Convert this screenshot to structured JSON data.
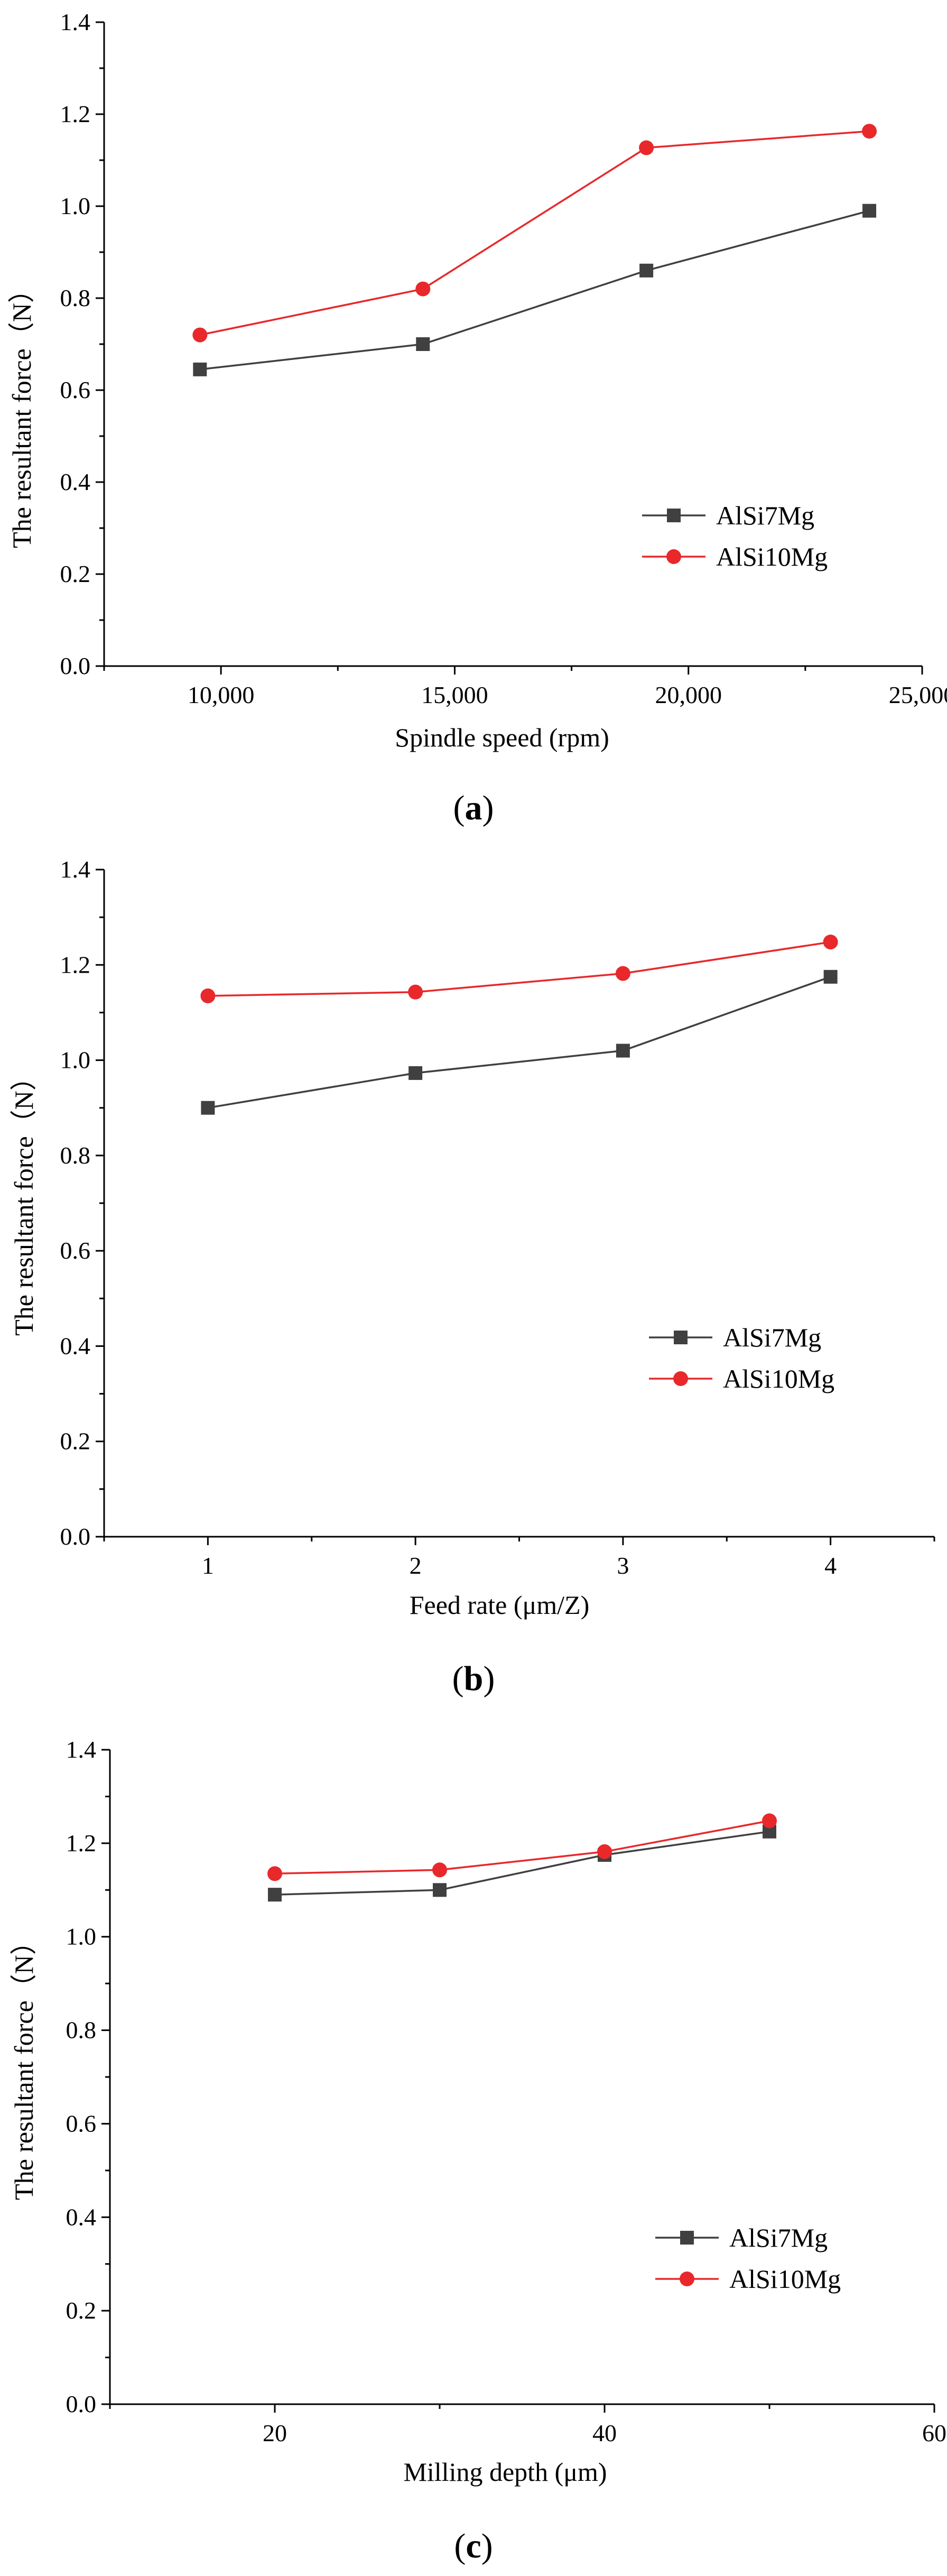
{
  "colors": {
    "series_1": "#404040",
    "series_2": "#e8282b",
    "axis": "#000000"
  },
  "chart_data": [
    {
      "type": "line",
      "panel": "a",
      "xlabel": "Spindle speed (rpm)",
      "ylabel": "The resultant force（N）",
      "xlim": [
        7500,
        25000
      ],
      "ylim": [
        0,
        1.4
      ],
      "xticks": [
        10000,
        15000,
        20000,
        25000
      ],
      "xtick_labels": [
        "10,000",
        "15,000",
        "20,000",
        "25,000"
      ],
      "yticks": [
        0,
        0.2,
        0.4,
        0.6,
        0.8,
        1.0,
        1.2,
        1.4
      ],
      "ytick_labels": [
        "0.0",
        "0.2",
        "0.4",
        "0.6",
        "0.8",
        "1.0",
        "1.2",
        "1.4"
      ],
      "x": [
        9550,
        14320,
        19100,
        23870
      ],
      "series": [
        {
          "name": "AlSi7Mg",
          "marker": "square",
          "values": [
            0.645,
            0.7,
            0.86,
            0.99
          ]
        },
        {
          "name": "AlSi10Mg",
          "marker": "circle",
          "values": [
            0.72,
            0.82,
            1.127,
            1.163
          ]
        }
      ],
      "legend_position": "lower-right"
    },
    {
      "type": "line",
      "panel": "b",
      "xlabel": "Feed rate (μm/Z)",
      "ylabel": "The resultant force（N）",
      "xlim": [
        0.5,
        4.5
      ],
      "ylim": [
        0,
        1.4
      ],
      "xticks": [
        1,
        2,
        3,
        4
      ],
      "xtick_labels": [
        "1",
        "2",
        "3",
        "4"
      ],
      "yticks": [
        0,
        0.2,
        0.4,
        0.6,
        0.8,
        1.0,
        1.2,
        1.4
      ],
      "ytick_labels": [
        "0.0",
        "0.2",
        "0.4",
        "0.6",
        "0.8",
        "1.0",
        "1.2",
        "1.4"
      ],
      "x": [
        1,
        2,
        3,
        4
      ],
      "series": [
        {
          "name": "AlSi7Mg",
          "marker": "square",
          "values": [
            0.9,
            0.973,
            1.02,
            1.175
          ]
        },
        {
          "name": "AlSi10Mg",
          "marker": "circle",
          "values": [
            1.135,
            1.143,
            1.182,
            1.248
          ]
        }
      ],
      "legend_position": "lower-right"
    },
    {
      "type": "line",
      "panel": "c",
      "xlabel": "Milling depth (μm)",
      "ylabel": "The resultant force（N）",
      "xlim": [
        10,
        60
      ],
      "ylim": [
        0,
        1.4
      ],
      "xticks": [
        20,
        40,
        60
      ],
      "xtick_labels": [
        "20",
        "40",
        "60"
      ],
      "yticks": [
        0,
        0.2,
        0.4,
        0.6,
        0.8,
        1.0,
        1.2,
        1.4
      ],
      "ytick_labels": [
        "0.0",
        "0.2",
        "0.4",
        "0.6",
        "0.8",
        "1.0",
        "1.2",
        "1.4"
      ],
      "x": [
        20,
        30,
        40,
        50
      ],
      "series": [
        {
          "name": "AlSi7Mg",
          "marker": "square",
          "values": [
            1.09,
            1.1,
            1.175,
            1.225
          ]
        },
        {
          "name": "AlSi10Mg",
          "marker": "circle",
          "values": [
            1.135,
            1.143,
            1.182,
            1.248
          ]
        }
      ],
      "legend_position": "lower-right"
    }
  ],
  "panel_labels": [
    {
      "open": "(",
      "letter": "a",
      "close": ")"
    },
    {
      "open": "(",
      "letter": "b",
      "close": ")"
    },
    {
      "open": "(",
      "letter": "c",
      "close": ")"
    }
  ]
}
